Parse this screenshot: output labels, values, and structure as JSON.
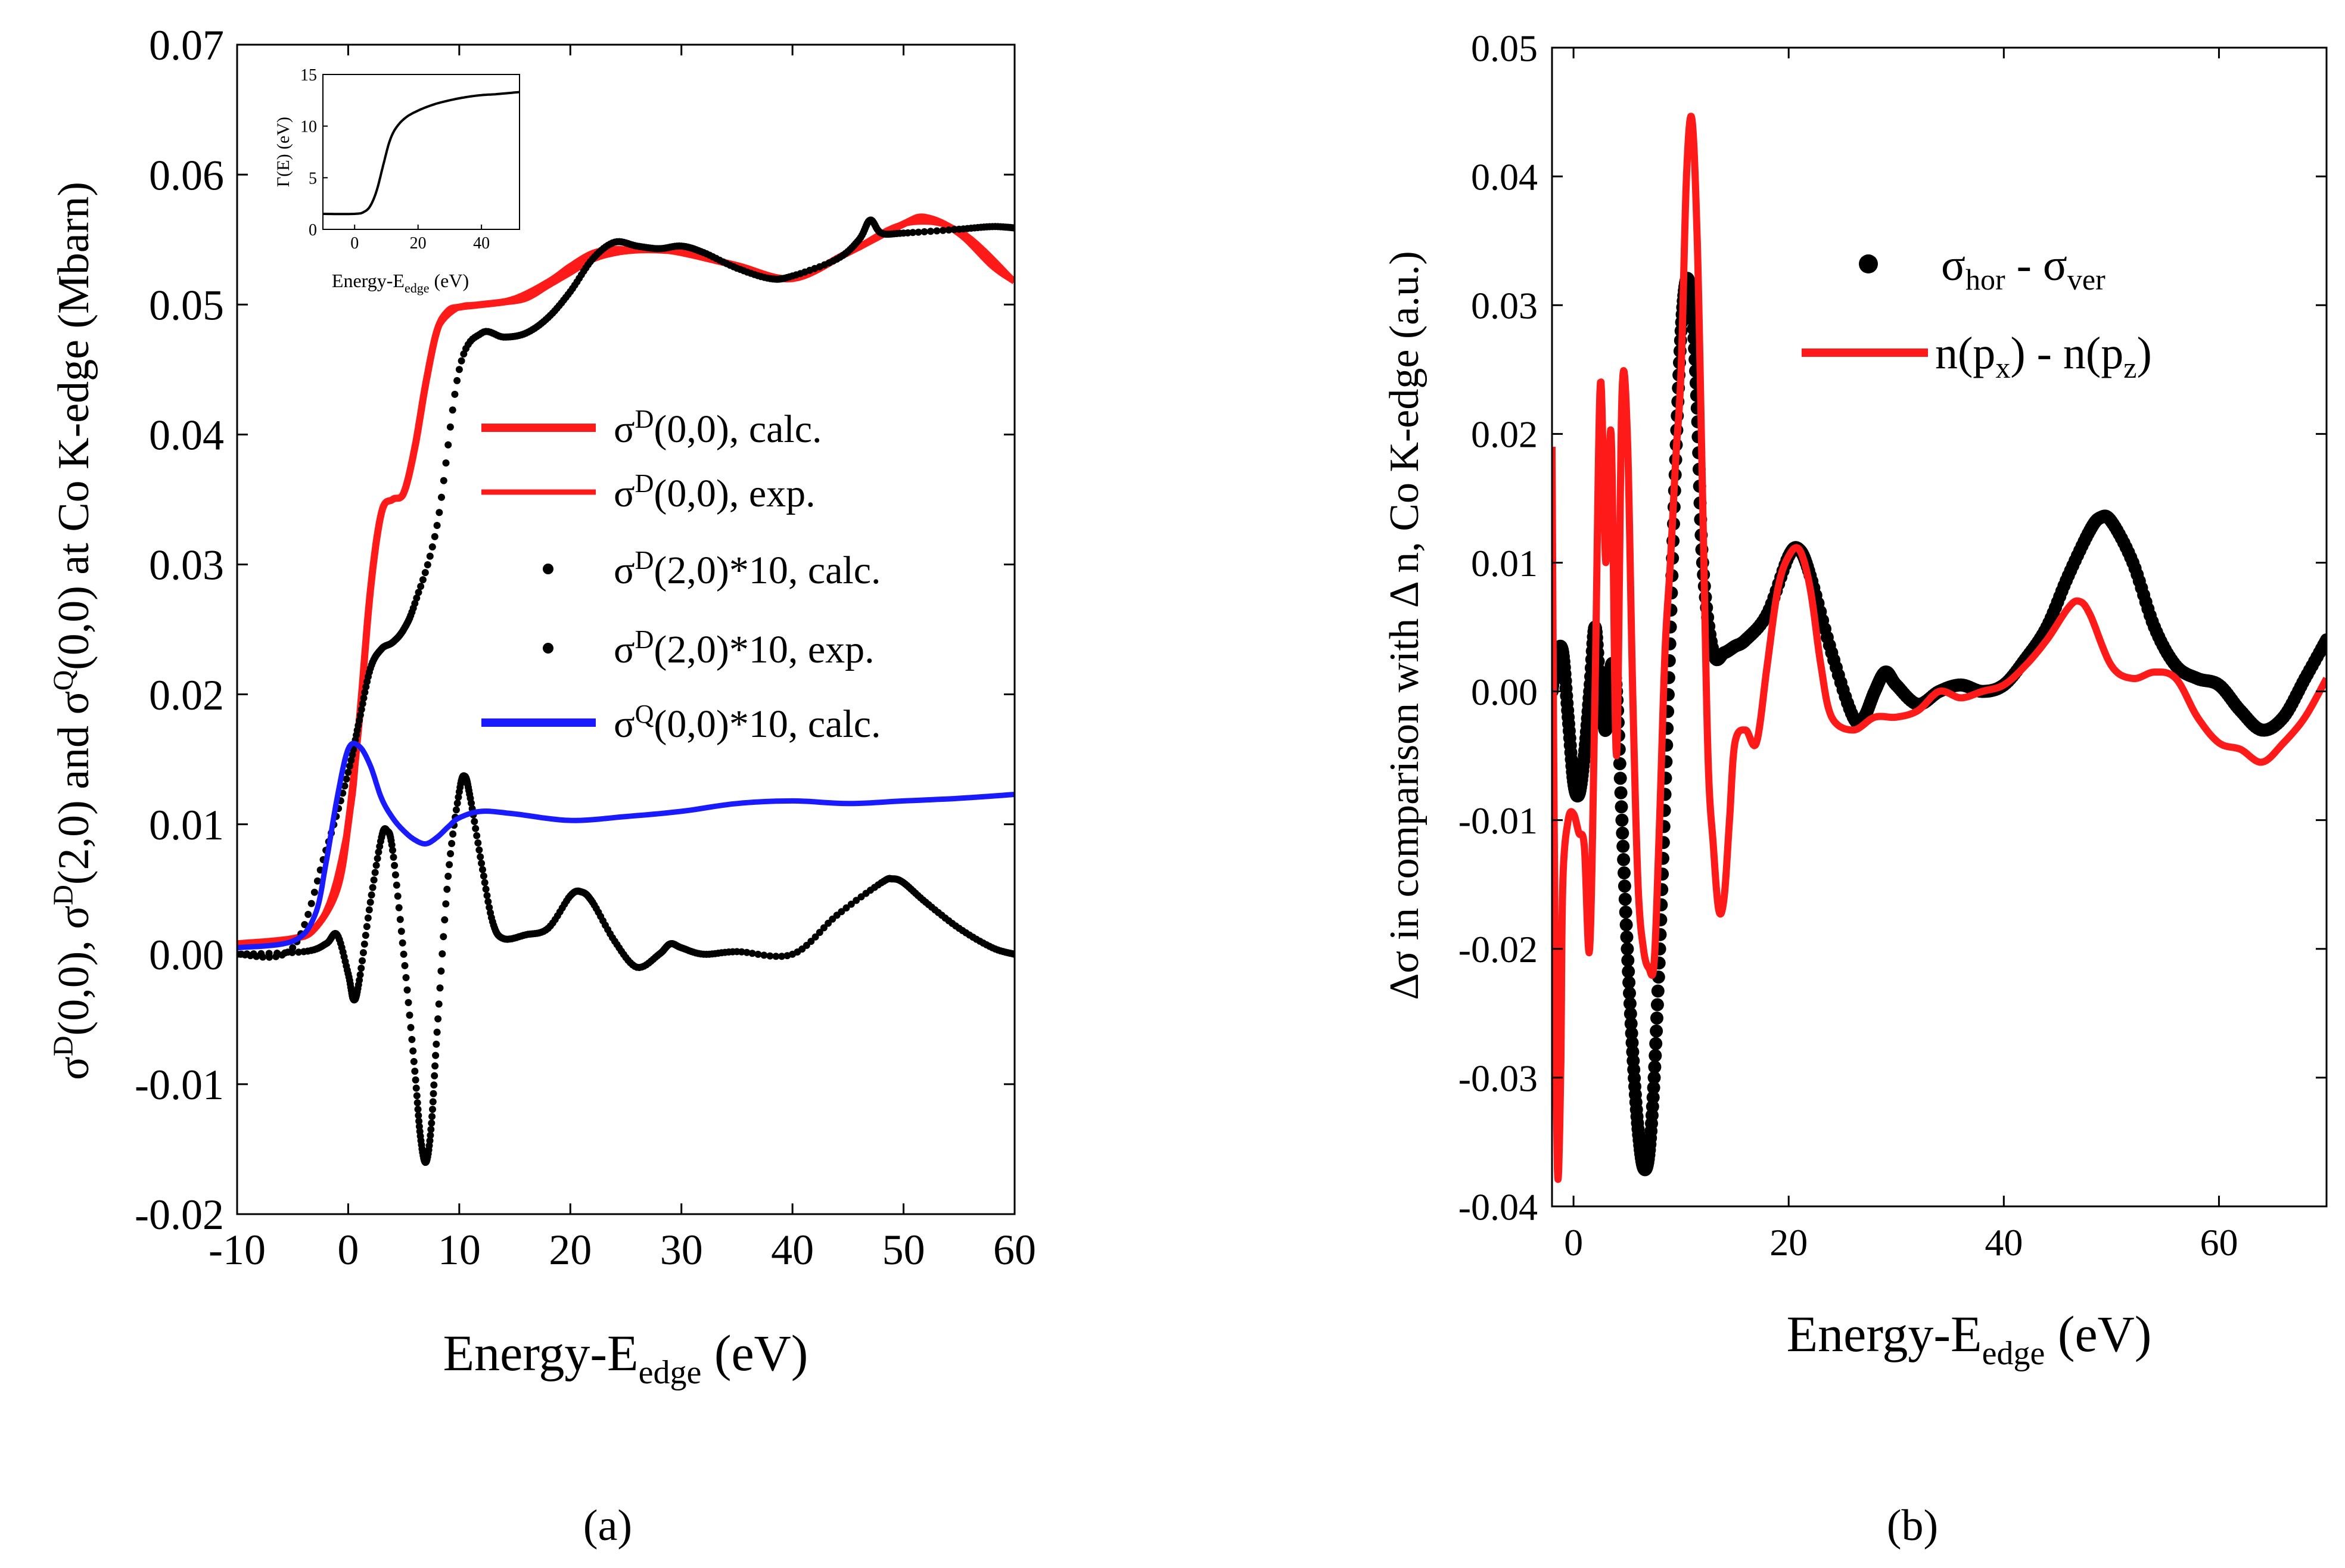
{
  "chart_data": [
    {
      "panel_label": "(a)",
      "type": "line",
      "title": "",
      "xlabel": "Energy-E",
      "xlabel_sub": "edge",
      "xlabel_unit": "(eV)",
      "ylabel_text": "σ^D(0,0), σ^D(2,0) and σ^Q(0,0) at Co K-edge (Mbarn)",
      "xlim": [
        -10,
        60
      ],
      "ylim": [
        -0.02,
        0.07
      ],
      "xticks": [
        "-10",
        "0",
        "10",
        "20",
        "30",
        "40",
        "50",
        "60"
      ],
      "xtick_values": [
        -10,
        0,
        10,
        20,
        30,
        40,
        50,
        60
      ],
      "yticks": [
        "-0.02",
        "-0.01",
        "0.00",
        "0.01",
        "0.02",
        "0.03",
        "0.04",
        "0.05",
        "0.06",
        "0.07"
      ],
      "ytick_values": [
        -0.02,
        -0.01,
        0.0,
        0.01,
        0.02,
        0.03,
        0.04,
        0.05,
        0.06,
        0.07
      ],
      "legend": [
        "σD(0,0), calc.",
        "σD(0,0), exp.",
        "σD(2,0)*10, calc.",
        "σD(2,0)*10, exp.",
        "σQ(0,0)*10, calc."
      ],
      "legend_position": "center-right",
      "series": [
        {
          "name": "σD(0,0), calc.",
          "color": "#ff1a1a",
          "style": "line",
          "x": [
            -10,
            -5,
            -3,
            -1,
            0,
            1,
            2,
            3,
            4,
            5,
            6,
            7,
            8,
            9,
            10,
            12,
            14,
            16,
            18,
            20,
            22,
            24,
            26,
            28,
            30,
            35,
            40,
            45,
            50,
            52,
            55,
            58,
            60
          ],
          "y": [
            0.0008,
            0.0012,
            0.002,
            0.005,
            0.01,
            0.018,
            0.028,
            0.034,
            0.035,
            0.0355,
            0.039,
            0.044,
            0.048,
            0.0495,
            0.0498,
            0.05,
            0.0502,
            0.0505,
            0.0515,
            0.0525,
            0.0535,
            0.054,
            0.0542,
            0.0542,
            0.054,
            0.053,
            0.052,
            0.054,
            0.0562,
            0.0567,
            0.0555,
            0.053,
            0.0518
          ]
        },
        {
          "name": "σD(0,0), exp.",
          "color": "#ff1a1a",
          "style": "line",
          "x": [
            -10,
            -3,
            0,
            1,
            2,
            3,
            4,
            5,
            6,
            7,
            8,
            10,
            12,
            15,
            18,
            20,
            22,
            24,
            26,
            28,
            30,
            32,
            35,
            40,
            45,
            50,
            55,
            60
          ],
          "y": [
            0.0008,
            0.002,
            0.01,
            0.018,
            0.028,
            0.034,
            0.035,
            0.0355,
            0.039,
            0.044,
            0.048,
            0.0498,
            0.05,
            0.0505,
            0.0518,
            0.053,
            0.054,
            0.0543,
            0.0542,
            0.0542,
            0.0541,
            0.0538,
            0.053,
            0.052,
            0.054,
            0.0562,
            0.0557,
            0.0518
          ]
        },
        {
          "name": "σD(2,0)*10, calc.",
          "color": "#000000",
          "style": "dots",
          "x": [
            -10,
            -4,
            -2,
            -1,
            0,
            0.5,
            1,
            2,
            3,
            3.5,
            4,
            5,
            6,
            6.5,
            7,
            7.5,
            8,
            9,
            10,
            10.5,
            11,
            12,
            13,
            14,
            16,
            18,
            20,
            21,
            22,
            24,
            26,
            28,
            29,
            30,
            32,
            35,
            40,
            44,
            48,
            49,
            50,
            52,
            55,
            58,
            60
          ],
          "y": [
            0.0,
            0.0002,
            0.0008,
            0.0015,
            -0.0015,
            -0.0035,
            -0.002,
            0.004,
            0.009,
            0.0095,
            0.008,
            0.0,
            -0.009,
            -0.014,
            -0.016,
            -0.013,
            -0.006,
            0.006,
            0.0125,
            0.0137,
            0.012,
            0.007,
            0.0025,
            0.0012,
            0.0015,
            0.002,
            0.0045,
            0.0048,
            0.004,
            0.001,
            -0.001,
            0.0,
            0.0008,
            0.0005,
            0.0,
            0.0002,
            0.0,
            0.003,
            0.0055,
            0.0058,
            0.0055,
            0.004,
            0.002,
            0.0005,
            0.0
          ]
        },
        {
          "name": "σD(2,0)*10, exp.",
          "color": "#000000",
          "style": "dots",
          "x": [
            -10,
            -5,
            -2,
            0,
            1,
            2,
            3,
            4,
            5,
            6,
            8,
            10,
            12,
            14,
            16,
            18,
            20,
            22,
            24,
            26,
            28,
            30,
            32,
            35,
            38,
            40,
            44,
            46,
            47,
            48,
            50,
            55,
            58,
            60
          ],
          "y": [
            0.0,
            0.0005,
            0.008,
            0.014,
            0.018,
            0.022,
            0.0235,
            0.024,
            0.025,
            0.027,
            0.033,
            0.045,
            0.0478,
            0.0475,
            0.0478,
            0.049,
            0.051,
            0.0535,
            0.0548,
            0.0545,
            0.0543,
            0.0545,
            0.054,
            0.0528,
            0.052,
            0.0522,
            0.0535,
            0.055,
            0.0565,
            0.0555,
            0.0555,
            0.0558,
            0.056,
            0.0559
          ]
        },
        {
          "name": "σQ(0,0)*10, calc.",
          "color": "#1a1aff",
          "style": "line",
          "x": [
            -10,
            -5,
            -3,
            -2,
            -1,
            0,
            1,
            2,
            3,
            4,
            5,
            6,
            7,
            8,
            9,
            10,
            12,
            15,
            20,
            25,
            30,
            35,
            40,
            45,
            50,
            55,
            60
          ],
          "y": [
            0.0005,
            0.001,
            0.003,
            0.007,
            0.012,
            0.0158,
            0.016,
            0.0145,
            0.012,
            0.0105,
            0.0095,
            0.0088,
            0.0085,
            0.009,
            0.0098,
            0.0105,
            0.011,
            0.0108,
            0.0103,
            0.0106,
            0.011,
            0.0116,
            0.0118,
            0.0116,
            0.0118,
            0.012,
            0.0123
          ]
        }
      ],
      "inset": {
        "ylabel": "Γ(E) (eV)",
        "xlabel": "Energy-E",
        "xlabel_sub": "edge",
        "xlabel_unit": "(eV)",
        "xlim": [
          -10,
          52
        ],
        "ylim": [
          0,
          15
        ],
        "xticks": [
          "0",
          "20",
          "40"
        ],
        "xtick_values": [
          0,
          20,
          40
        ],
        "yticks": [
          "0",
          "5",
          "10",
          "15"
        ],
        "ytick_values": [
          0,
          5,
          10,
          15
        ],
        "series": {
          "x": [
            -10,
            0,
            3,
            5,
            7,
            9,
            11,
            13,
            16,
            20,
            25,
            30,
            35,
            40,
            45,
            52
          ],
          "y": [
            1.5,
            1.5,
            1.7,
            2.3,
            3.8,
            6.2,
            8.5,
            9.8,
            10.8,
            11.5,
            12.1,
            12.5,
            12.8,
            13.0,
            13.1,
            13.3
          ]
        }
      }
    },
    {
      "panel_label": "(b)",
      "type": "line",
      "title": "",
      "xlabel": "Energy-E",
      "xlabel_sub": "edge",
      "xlabel_unit": "(eV)",
      "ylabel_text": "Δσ in comparison with Δ n, Co K-edge (a.u.)",
      "xlim": [
        -2,
        70
      ],
      "ylim": [
        -0.04,
        0.05
      ],
      "xticks": [
        "0",
        "20",
        "40",
        "60"
      ],
      "xtick_values": [
        0,
        20,
        40,
        60
      ],
      "yticks": [
        "-0.04",
        "-0.03",
        "-0.02",
        "-0.01",
        "0.00",
        "0.01",
        "0.02",
        "0.03",
        "0.04",
        "0.05"
      ],
      "ytick_values": [
        -0.04,
        -0.03,
        -0.02,
        -0.01,
        0.0,
        0.01,
        0.02,
        0.03,
        0.04,
        0.05
      ],
      "legend": [
        "σhor - σver",
        "n(px) - n(pz)"
      ],
      "legend_position": "top-right",
      "series": [
        {
          "name": "σhor - σver",
          "color": "#000000",
          "style": "dots",
          "x": [
            -2,
            -1.5,
            -1,
            -0.5,
            0,
            0.5,
            1,
            1.5,
            2,
            2.5,
            3,
            3.5,
            4,
            4.5,
            5,
            5.5,
            6,
            6.5,
            7,
            7.5,
            8,
            8.5,
            9,
            9.5,
            10,
            10.5,
            11,
            11.5,
            12,
            13,
            14,
            15,
            16,
            18,
            20,
            21,
            22,
            24,
            26,
            27,
            28,
            29,
            30,
            32,
            34,
            36,
            38,
            40,
            42,
            44,
            46,
            48,
            49,
            50,
            52,
            54,
            56,
            58,
            60,
            62,
            64,
            66,
            68,
            70
          ],
          "y": [
            0.0,
            0.003,
            0.003,
            -0.002,
            -0.007,
            -0.008,
            -0.005,
            0.0,
            0.005,
            0.0,
            -0.003,
            0.002,
            0.0,
            -0.01,
            -0.02,
            -0.028,
            -0.034,
            -0.037,
            -0.036,
            -0.03,
            -0.02,
            -0.008,
            0.005,
            0.018,
            0.028,
            0.032,
            0.03,
            0.022,
            0.01,
            0.003,
            0.003,
            0.0035,
            0.004,
            0.006,
            0.0105,
            0.011,
            0.009,
            0.003,
            -0.002,
            -0.002,
            0.0,
            0.0015,
            0.0005,
            -0.001,
            0.0,
            0.0005,
            0.0,
            0.0005,
            0.0025,
            0.005,
            0.009,
            0.0125,
            0.0135,
            0.0132,
            0.01,
            0.005,
            0.002,
            0.001,
            0.0005,
            -0.0015,
            -0.003,
            -0.002,
            0.001,
            0.004
          ]
        },
        {
          "name": "n(px) - n(pz)",
          "color": "#ff1a1a",
          "style": "line",
          "x": [
            -2,
            -1.8,
            -1.5,
            -1.2,
            -1,
            -0.5,
            0,
            0.5,
            1,
            1.5,
            2,
            2.5,
            3,
            3.5,
            4,
            4.5,
            5,
            5.5,
            6,
            6.5,
            7,
            7.5,
            8,
            8.5,
            9,
            9.5,
            10,
            10.5,
            11,
            11.5,
            12,
            12.5,
            13,
            13.5,
            14,
            14.5,
            15,
            16,
            17,
            18,
            19,
            20,
            21,
            22,
            23,
            24,
            26,
            28,
            30,
            32,
            34,
            36,
            38,
            40,
            42,
            44,
            46,
            47,
            48,
            50,
            52,
            54,
            56,
            58,
            60,
            62,
            64,
            66,
            68,
            70
          ],
          "y": [
            0.019,
            -0.01,
            -0.037,
            -0.03,
            -0.015,
            -0.01,
            -0.0095,
            -0.011,
            -0.012,
            -0.02,
            0.0,
            0.024,
            0.01,
            0.02,
            -0.005,
            0.023,
            0.02,
            0.0,
            -0.015,
            -0.02,
            -0.0215,
            -0.021,
            -0.01,
            0.003,
            0.01,
            0.018,
            0.025,
            0.04,
            0.0445,
            0.035,
            0.015,
            -0.005,
            -0.012,
            -0.017,
            -0.016,
            -0.01,
            -0.004,
            -0.003,
            -0.004,
            0.002,
            0.008,
            0.0105,
            0.011,
            0.008,
            0.002,
            -0.002,
            -0.003,
            -0.002,
            -0.002,
            -0.0015,
            0.0,
            -0.0005,
            0.0,
            0.0005,
            0.002,
            0.004,
            0.0065,
            0.007,
            0.006,
            0.002,
            0.001,
            0.0015,
            0.001,
            -0.002,
            -0.004,
            -0.0045,
            -0.0055,
            -0.004,
            -0.002,
            0.001
          ]
        }
      ]
    }
  ]
}
